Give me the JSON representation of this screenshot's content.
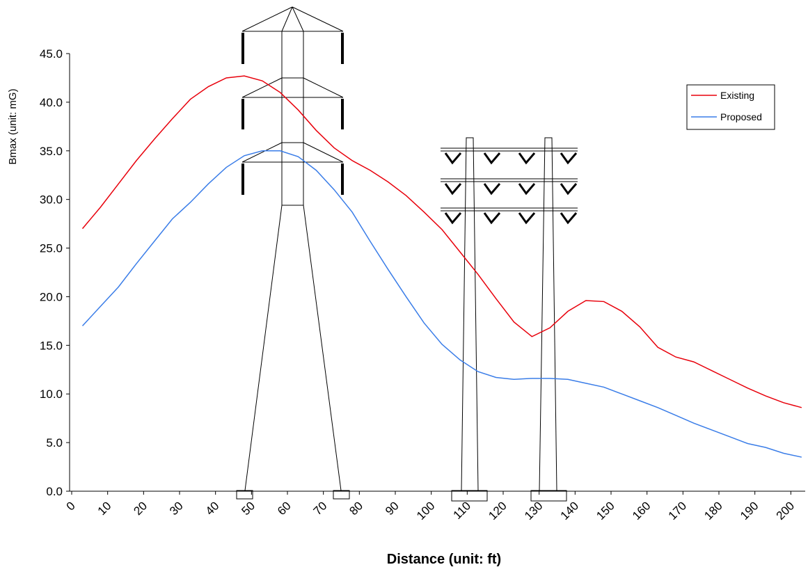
{
  "chart_data": {
    "type": "line",
    "x_label": "Distance (unit: ft)",
    "y_label": "Bmax (unit: mG)",
    "x": [
      3,
      8,
      13,
      18,
      23,
      28,
      33,
      38,
      43,
      48,
      53,
      58,
      63,
      68,
      73,
      78,
      83,
      88,
      93,
      98,
      103,
      108,
      113,
      118,
      123,
      128,
      133,
      138,
      143,
      148,
      153,
      158,
      163,
      168,
      173,
      178,
      183,
      188,
      193,
      198,
      203
    ],
    "series": [
      {
        "name": "Existing",
        "color": "#e8000b",
        "values": [
          27.0,
          29.2,
          31.6,
          34.0,
          36.2,
          38.3,
          40.3,
          41.6,
          42.5,
          42.7,
          42.2,
          41.0,
          39.2,
          37.1,
          35.3,
          34.0,
          33.0,
          31.8,
          30.4,
          28.7,
          26.9,
          24.6,
          22.3,
          19.8,
          17.4,
          15.9,
          16.8,
          18.5,
          19.6,
          19.5,
          18.5,
          16.9,
          14.8,
          13.8,
          13.3,
          12.4,
          11.5,
          10.6,
          9.8,
          9.1,
          8.6
        ]
      },
      {
        "name": "Proposed",
        "color": "#3a7de8",
        "values": [
          17.0,
          19.0,
          21.0,
          23.4,
          25.7,
          28.0,
          29.7,
          31.6,
          33.3,
          34.5,
          35.0,
          35.0,
          34.4,
          33.0,
          31.0,
          28.7,
          25.7,
          22.8,
          20.0,
          17.3,
          15.1,
          13.5,
          12.3,
          11.7,
          11.5,
          11.6,
          11.6,
          11.5,
          11.1,
          10.7,
          10.0,
          9.3,
          8.6,
          7.8,
          7.0,
          6.3,
          5.6,
          4.9,
          4.5,
          3.9,
          3.5
        ]
      }
    ],
    "xlim": [
      0,
      204
    ],
    "xticks": [
      0,
      10,
      20,
      30,
      40,
      50,
      60,
      70,
      80,
      90,
      100,
      110,
      120,
      130,
      140,
      150,
      160,
      170,
      180,
      190,
      200
    ],
    "ylim": [
      0,
      45
    ],
    "yticks": [
      {
        "value": 0,
        "label": "0.0"
      },
      {
        "value": 5,
        "label": "5.0"
      },
      {
        "value": 10,
        "label": "10.0"
      },
      {
        "value": 15,
        "label": "15.0"
      },
      {
        "value": 20,
        "label": "20.0"
      },
      {
        "value": 25,
        "label": "25.0"
      },
      {
        "value": 30,
        "label": "30.0"
      },
      {
        "value": 35,
        "label": "35.0"
      },
      {
        "value": 40,
        "label": "40.0"
      },
      {
        "value": 45,
        "label": "45.0"
      }
    ],
    "grid": false
  }
}
